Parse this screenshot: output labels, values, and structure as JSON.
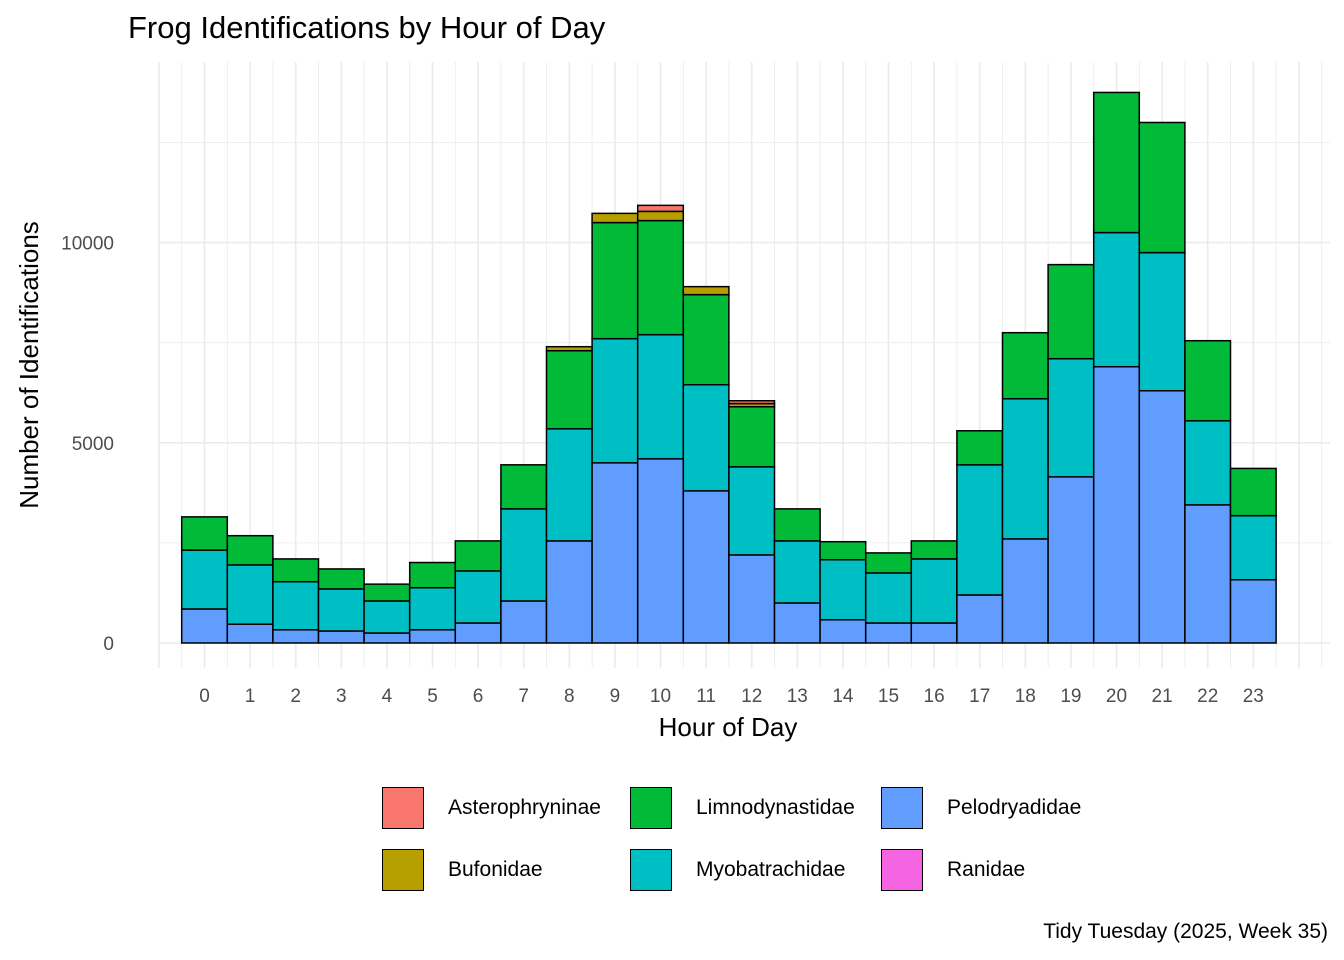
{
  "chart_data": {
    "type": "bar",
    "stacked": true,
    "title": "Frog Identifications by Hour of Day",
    "xlabel": "Hour of Day",
    "ylabel": "Number of Identifications",
    "caption": "Tidy Tuesday (2025, Week 35)",
    "categories": [
      "0",
      "1",
      "2",
      "3",
      "4",
      "5",
      "6",
      "7",
      "8",
      "9",
      "10",
      "11",
      "12",
      "13",
      "14",
      "15",
      "16",
      "17",
      "18",
      "19",
      "20",
      "21",
      "22",
      "23"
    ],
    "y_ticks": [
      0,
      5000,
      10000
    ],
    "ylim": [
      -700,
      14500
    ],
    "grid": true,
    "legend_position": "bottom",
    "series": [
      {
        "name": "Pelodryadidae",
        "color": "#619CFF",
        "values": [
          850,
          470,
          330,
          300,
          250,
          330,
          500,
          1050,
          2550,
          4500,
          4600,
          3800,
          2200,
          1000,
          580,
          500,
          500,
          1200,
          2600,
          4150,
          6900,
          6300,
          3450,
          1580
        ]
      },
      {
        "name": "Myobatrachidae",
        "color": "#00BFC4",
        "values": [
          1470,
          1480,
          1200,
          1050,
          800,
          1050,
          1300,
          2300,
          2800,
          3100,
          3100,
          2650,
          2200,
          1550,
          1500,
          1250,
          1600,
          3250,
          3500,
          2950,
          3350,
          3450,
          2100,
          1600
        ]
      },
      {
        "name": "Limnodynastidae",
        "color": "#00BA38",
        "values": [
          830,
          730,
          570,
          500,
          420,
          630,
          750,
          1100,
          1950,
          2900,
          2850,
          2250,
          1500,
          800,
          450,
          500,
          450,
          850,
          1650,
          2350,
          3500,
          3250,
          2000,
          1180
        ]
      },
      {
        "name": "Ranidae",
        "color": "#F564E3",
        "values": [
          0,
          0,
          0,
          0,
          0,
          0,
          0,
          0,
          0,
          0,
          0,
          0,
          0,
          0,
          0,
          0,
          0,
          0,
          0,
          0,
          0,
          0,
          0,
          0
        ]
      },
      {
        "name": "Bufonidae",
        "color": "#B79F00",
        "values": [
          0,
          0,
          0,
          0,
          0,
          0,
          0,
          0,
          100,
          230,
          230,
          200,
          80,
          0,
          0,
          0,
          0,
          0,
          0,
          0,
          0,
          0,
          0,
          0
        ]
      },
      {
        "name": "Asterophryninae",
        "color": "#F8766D",
        "values": [
          0,
          0,
          0,
          0,
          0,
          0,
          0,
          0,
          0,
          0,
          150,
          0,
          70,
          0,
          0,
          0,
          0,
          0,
          0,
          0,
          0,
          0,
          0,
          0
        ]
      }
    ],
    "legend": [
      "Asterophryninae",
      "Bufonidae",
      "Limnodynastidae",
      "Myobatrachidae",
      "Pelodryadidae",
      "Ranidae"
    ]
  }
}
